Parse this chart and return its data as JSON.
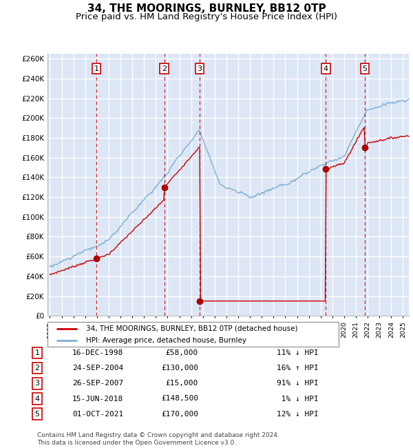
{
  "title": "34, THE MOORINGS, BURNLEY, BB12 0TP",
  "subtitle": "Price paid vs. HM Land Registry's House Price Index (HPI)",
  "ylim": [
    0,
    265000
  ],
  "yticks": [
    0,
    20000,
    40000,
    60000,
    80000,
    100000,
    120000,
    140000,
    160000,
    180000,
    200000,
    220000,
    240000,
    260000
  ],
  "xlim_start": 1994.8,
  "xlim_end": 2025.5,
  "plot_bg_color": "#dce6f5",
  "grid_color": "#ffffff",
  "hpi_line_color": "#7bafd4",
  "price_line_color": "#cc0000",
  "sales": [
    {
      "num": 1,
      "year": 1998.96,
      "price": 58000,
      "label": "1",
      "date": "16-DEC-1998",
      "price_str": "£58,000",
      "pct": "11% ↓ HPI"
    },
    {
      "num": 2,
      "year": 2004.73,
      "price": 130000,
      "label": "2",
      "date": "24-SEP-2004",
      "price_str": "£130,000",
      "pct": "16% ↑ HPI"
    },
    {
      "num": 3,
      "year": 2007.73,
      "price": 15000,
      "label": "3",
      "date": "26-SEP-2007",
      "price_str": "£15,000",
      "pct": "91% ↓ HPI"
    },
    {
      "num": 4,
      "year": 2018.45,
      "price": 148500,
      "label": "4",
      "date": "15-JUN-2018",
      "price_str": "£148,500",
      "pct": " 1% ↓ HPI"
    },
    {
      "num": 5,
      "year": 2021.75,
      "price": 170000,
      "label": "5",
      "date": "01-OCT-2021",
      "price_str": "£170,000",
      "pct": "12% ↓ HPI"
    }
  ],
  "legend_label_red": "34, THE MOORINGS, BURNLEY, BB12 0TP (detached house)",
  "legend_label_blue": "HPI: Average price, detached house, Burnley",
  "footer": "Contains HM Land Registry data © Crown copyright and database right 2024.\nThis data is licensed under the Open Government Licence v3.0.",
  "title_fontsize": 11,
  "subtitle_fontsize": 9.5
}
